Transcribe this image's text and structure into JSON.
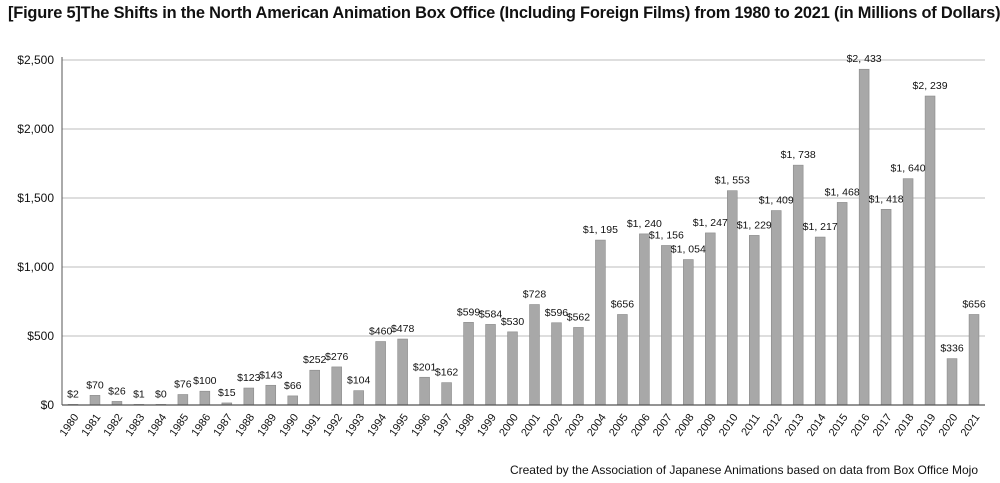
{
  "title": "[Figure 5]The Shifts in the North American Animation Box Office (Including Foreign Films) from 1980 to 2021 (in Millions of Dollars)",
  "source": "Created by the Association of Japanese Animations based on data from Box Office Mojo",
  "chart_data": {
    "type": "bar",
    "title": "[Figure 5]The Shifts in the North American Animation Box Office (Including Foreign Films) from 1980 to 2021 (in Millions of Dollars)",
    "xlabel": "",
    "ylabel": "",
    "ylim": [
      0,
      2500
    ],
    "yticks": [
      0,
      500,
      1000,
      1500,
      2000,
      2500
    ],
    "ytick_labels": [
      "$0",
      "$500",
      "$1,000",
      "$1,500",
      "$2,000",
      "$2,500"
    ],
    "grid": true,
    "categories": [
      "1980",
      "1981",
      "1982",
      "1983",
      "1984",
      "1985",
      "1986",
      "1987",
      "1988",
      "1989",
      "1990",
      "1991",
      "1992",
      "1993",
      "1994",
      "1995",
      "1996",
      "1997",
      "1998",
      "1999",
      "2000",
      "2001",
      "2002",
      "2003",
      "2004",
      "2005",
      "2006",
      "2007",
      "2008",
      "2009",
      "2010",
      "2011",
      "2012",
      "2013",
      "2014",
      "2015",
      "2016",
      "2017",
      "2018",
      "2019",
      "2020",
      "2021"
    ],
    "values": [
      2,
      70,
      26,
      1,
      0,
      76,
      100,
      15,
      123,
      143,
      66,
      252,
      276,
      104,
      460,
      478,
      201,
      162,
      599,
      584,
      530,
      728,
      596,
      562,
      1195,
      656,
      1240,
      1156,
      1054,
      1247,
      1553,
      1229,
      1409,
      1738,
      1217,
      1468,
      2433,
      1418,
      1640,
      2239,
      336,
      656
    ],
    "data_labels": [
      "$2",
      "$70",
      "$26",
      "$1",
      "$0",
      "$76",
      "$100",
      "$15",
      "$123",
      "$143",
      "$66",
      "$252",
      "$276",
      "$104",
      "$460",
      "$478",
      "$201",
      "$162",
      "$599",
      "$584",
      "$530",
      "$728",
      "$596",
      "$562",
      "$1, 195",
      "$656",
      "$1, 240",
      "$1, 156",
      "$1, 054",
      "$1, 247",
      "$1, 553",
      "$1, 229",
      "$1, 409",
      "$1, 738",
      "$1, 217",
      "$1, 468",
      "$2, 433",
      "$1, 418",
      "$1, 640",
      "$2, 239",
      "$336",
      "$656"
    ],
    "colors": {
      "bar": "#a8a8a8",
      "bar_edge": "#8a8a8a",
      "grid": "#bdbdbd",
      "axis": "#555555"
    }
  }
}
